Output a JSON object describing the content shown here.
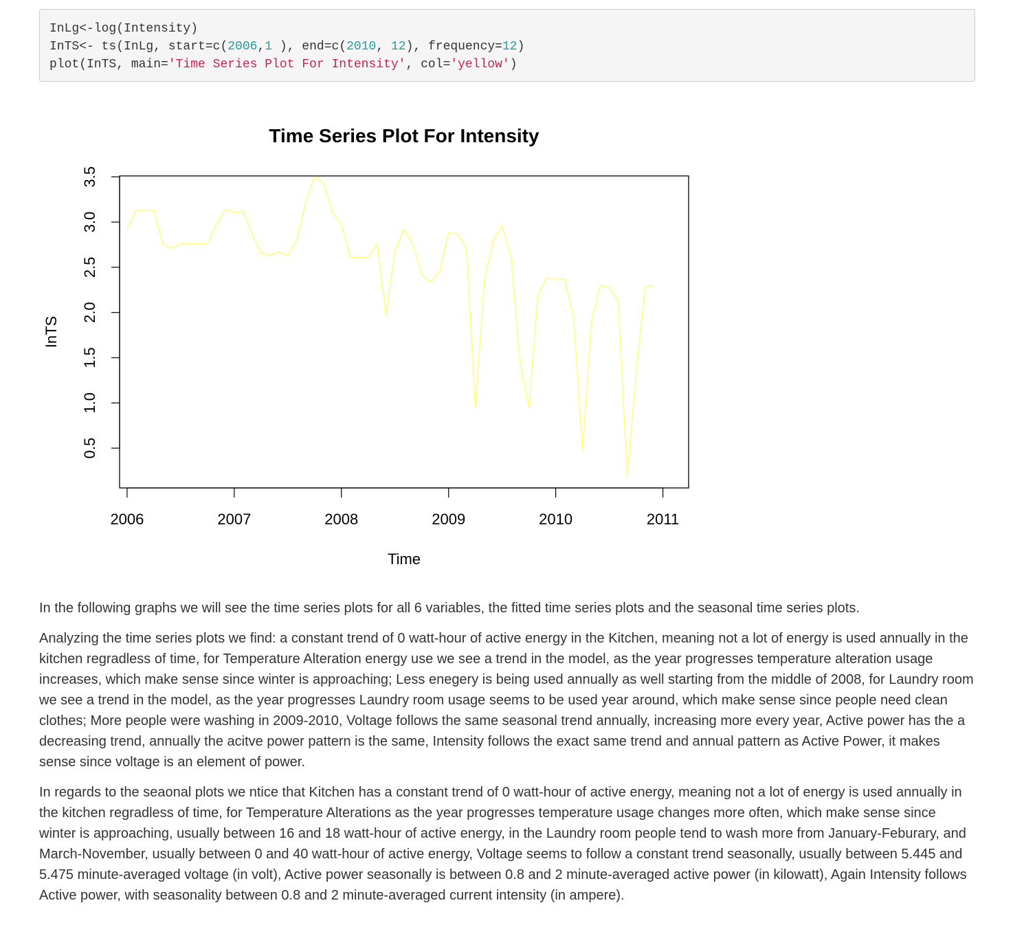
{
  "code": {
    "line1": "InLg<-log(Intensity)",
    "line2": {
      "p1": "InTS<- ts(InLg, start=c(",
      "n1": "2006",
      "p2": ",",
      "n2": "1",
      "p3": " ), end=c(",
      "n3": "2010",
      "p4": ", ",
      "n4": "12",
      "p5": "), frequency=",
      "n5": "12",
      "p6": ")"
    },
    "line3": {
      "p1": "plot(InTS, main=",
      "s1": "'Time Series Plot For Intensity'",
      "p2": ", col=",
      "s2": "'yellow'",
      "p3": ")"
    }
  },
  "chart_data": {
    "type": "line",
    "title": "Time Series Plot For Intensity",
    "xlabel": "Time",
    "ylabel": "InTS",
    "xlim": [
      2005.93,
      2011.24
    ],
    "ylim": [
      0.06,
      3.51
    ],
    "x_ticks": [
      2006,
      2007,
      2008,
      2009,
      2010,
      2011
    ],
    "y_ticks": [
      0.5,
      1.0,
      1.5,
      2.0,
      2.5,
      3.0,
      3.5
    ],
    "y_tick_labels": [
      "0.5",
      "1.0",
      "1.5",
      "2.0",
      "2.5",
      "3.0",
      "3.5"
    ],
    "grid": false,
    "legend": "none",
    "line_color": "#ffff80",
    "start": [
      2006,
      1
    ],
    "frequency": 12,
    "series": [
      {
        "values": [
          2.92,
          3.13,
          3.13,
          3.13,
          2.76,
          2.71,
          2.76,
          2.76,
          2.76,
          2.76,
          2.97,
          3.14,
          3.11,
          3.12,
          2.87,
          2.66,
          2.63,
          2.67,
          2.63,
          2.8,
          3.22,
          3.5,
          3.43,
          3.11,
          2.97,
          2.61,
          2.61,
          2.61,
          2.76,
          1.97,
          2.68,
          2.92,
          2.76,
          2.42,
          2.34,
          2.45,
          2.88,
          2.87,
          2.71,
          0.95,
          2.35,
          2.79,
          2.96,
          2.61,
          1.45,
          0.95,
          2.2,
          2.38,
          2.37,
          2.37,
          1.95,
          0.47,
          1.9,
          2.3,
          2.28,
          2.12,
          0.19,
          1.32,
          2.28,
          2.3
        ]
      }
    ]
  },
  "prose": {
    "p1": "In the following graphs we will see the time series plots for all 6 variables, the fitted time series plots and the seasonal time series plots.",
    "p2": "Analyzing the time series plots we find: a constant trend of 0 watt-hour of active energy in the Kitchen, meaning not a lot of energy is used annually in the kitchen regradless of time, for Temperature Alteration energy use we see a trend in the model, as the year progresses temperature alteration usage increases, which make sense since winter is approaching; Less enegery is being used annually as well starting from the middle of 2008, for Laundry room we see a trend in the model, as the year progresses Laundry room usage seems to be used year around, which make sense since people need clean clothes; More people were washing in 2009-2010, Voltage follows the same seasonal trend annually, increasing more every year, Active power has the a decreasing trend, annually the acitve power pattern is the same, Intensity follows the exact same trend and annual pattern as Active Power, it makes sense since voltage is an element of power.",
    "p3": "In regards to the seaonal plots we ntice that Kitchen has a constant trend of 0 watt-hour of active energy, meaning not a lot of energy is used annually in the kitchen regradless of time, for Temperature Alterations as the year progresses temperature usage changes more often, which make sense since winter is approaching, usually between 16 and 18 watt-hour of active energy, in the Laundry room people tend to wash more from January-Feburary, and March-November, usually between 0 and 40 watt-hour of active energy, Voltage seems to follow a constant trend seasonally, usually between 5.445 and 5.475 minute-averaged voltage (in volt), Active power seasonally is between 0.8 and 2 minute-averaged active power (in kilowatt), Again Intensity follows Active power, with seasonality between 0.8 and 2 minute-averaged current intensity (in ampere)."
  }
}
